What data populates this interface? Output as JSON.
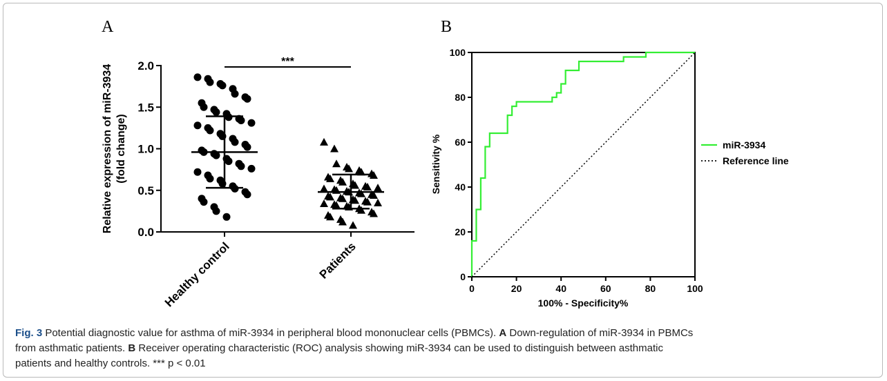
{
  "chart_data": [
    {
      "type": "scatter",
      "panel_label": "A",
      "ylabel": "Relative expression of miR-3934\n(fold change)",
      "ylim": [
        0,
        2.0
      ],
      "yticks": [
        "0.0",
        "0.5",
        "1.0",
        "1.5",
        "2.0"
      ],
      "categories": [
        "Healthy control",
        "Patients"
      ],
      "significance": "***",
      "series": [
        {
          "name": "Healthy control",
          "marker": "circle",
          "mean": 0.96,
          "sd_low": 0.53,
          "sd_high": 1.39,
          "values": [
            1.86,
            1.84,
            1.8,
            1.78,
            1.76,
            1.72,
            1.66,
            1.62,
            1.6,
            1.55,
            1.5,
            1.47,
            1.44,
            1.42,
            1.38,
            1.36,
            1.34,
            1.31,
            1.28,
            1.25,
            1.22,
            1.18,
            1.15,
            1.12,
            1.08,
            1.05,
            1.02,
            0.98,
            0.96,
            0.94,
            0.92,
            0.88,
            0.85,
            0.82,
            0.79,
            0.76,
            0.72,
            0.68,
            0.64,
            0.62,
            0.58,
            0.55,
            0.52,
            0.48,
            0.45,
            0.4,
            0.36,
            0.3,
            0.25,
            0.18
          ]
        },
        {
          "name": "Patients",
          "marker": "triangle",
          "mean": 0.48,
          "sd_low": 0.28,
          "sd_high": 0.69,
          "values": [
            1.08,
            1.0,
            0.82,
            0.78,
            0.76,
            0.74,
            0.72,
            0.7,
            0.68,
            0.66,
            0.64,
            0.62,
            0.6,
            0.58,
            0.56,
            0.55,
            0.54,
            0.53,
            0.52,
            0.51,
            0.5,
            0.49,
            0.48,
            0.47,
            0.46,
            0.45,
            0.44,
            0.43,
            0.42,
            0.41,
            0.4,
            0.39,
            0.38,
            0.37,
            0.36,
            0.35,
            0.34,
            0.33,
            0.32,
            0.31,
            0.3,
            0.28,
            0.26,
            0.24,
            0.22,
            0.2,
            0.18,
            0.15,
            0.12,
            0.08
          ]
        }
      ]
    },
    {
      "type": "line",
      "panel_label": "B",
      "xlabel": "100% - Specificity%",
      "ylabel": "Sensitivity %",
      "xlim": [
        0,
        100
      ],
      "ylim": [
        0,
        100
      ],
      "xticks": [
        "0",
        "20",
        "40",
        "60",
        "80",
        "100"
      ],
      "yticks": [
        "0",
        "20",
        "40",
        "60",
        "80",
        "100"
      ],
      "legend_position": "right",
      "series": [
        {
          "name": "miR-3934",
          "color": "#33ee33",
          "style": "solid",
          "x": [
            0,
            0,
            2,
            2,
            4,
            4,
            6,
            6,
            8,
            8,
            16,
            16,
            18,
            18,
            20,
            20,
            22,
            22,
            36,
            36,
            38,
            38,
            40,
            40,
            42,
            42,
            46,
            46,
            48,
            48,
            68,
            68,
            78,
            78,
            100
          ],
          "y": [
            0,
            16,
            16,
            30,
            30,
            44,
            44,
            58,
            58,
            64,
            64,
            72,
            72,
            76,
            76,
            78,
            78,
            78,
            78,
            80,
            80,
            82,
            82,
            86,
            86,
            92,
            92,
            92,
            92,
            96,
            96,
            98,
            98,
            100,
            100
          ]
        },
        {
          "name": "Reference line",
          "color": "#000000",
          "style": "dotted",
          "x": [
            0,
            100
          ],
          "y": [
            0,
            100
          ]
        }
      ]
    }
  ],
  "caption": {
    "fig_label": "Fig. 3",
    "line1_text": "  Potential diagnostic value for asthma of miR-3934 in peripheral blood mononuclear cells (PBMCs). ",
    "line1_bold": "A",
    "line1_tail": " Down-regulation of miR-3934 in PBMCs",
    "line2_text": "from asthmatic patients. ",
    "line2_bold": "B",
    "line2_tail": " Receiver operating characteristic (ROC) analysis showing miR-3934 can be used to distinguish between asthmatic",
    "line3_text": "patients and healthy controls. *** p < 0.01"
  }
}
